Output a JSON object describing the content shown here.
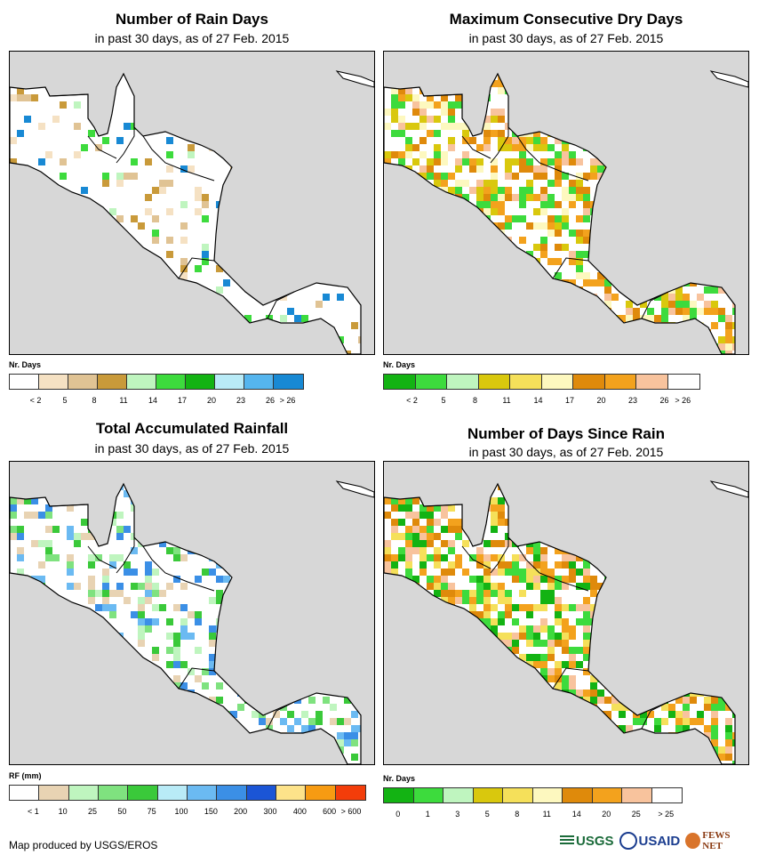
{
  "panels": {
    "rain_days": {
      "title": "Number of Rain Days",
      "subtitle": "in past 30 days, as of 27 Feb. 2015",
      "legend_title": "Nr. Days",
      "legend_colors": [
        "#ffffff",
        "#f5e1c3",
        "#e0c394",
        "#c99a3a",
        "#bff5bf",
        "#3ddb3d",
        "#13b313",
        "#b9ebf7",
        "#55b5ee",
        "#1889d4"
      ],
      "legend_ticks": [
        "< 2",
        "5",
        "8",
        "11",
        "14",
        "17",
        "20",
        "23",
        "26",
        "> 26"
      ]
    },
    "dry_days": {
      "title": "Maximum Consecutive Dry Days",
      "subtitle": "in past 30 days, as of 27 Feb. 2015",
      "legend_title": "Nr. Days",
      "legend_colors": [
        "#13b313",
        "#3ddb3d",
        "#bff5bf",
        "#d9c80d",
        "#f5e05a",
        "#fdf8bf",
        "#df8a0b",
        "#f3a21d",
        "#f8c39d",
        "#ffffff"
      ],
      "legend_ticks": [
        "< 2",
        "5",
        "8",
        "11",
        "14",
        "17",
        "20",
        "23",
        "26",
        "> 26"
      ]
    },
    "rainfall": {
      "title": "Total Accumulated Rainfall",
      "subtitle": "in past 30 days, as of 27 Feb. 2015",
      "legend_title": "RF (mm)",
      "legend_colors": [
        "#ffffff",
        "#e8d3b3",
        "#bff5bf",
        "#7fe27f",
        "#3ac93a",
        "#b9ebf7",
        "#6bbaf2",
        "#3b8fe6",
        "#1b55d6",
        "#fde38a",
        "#f79b12",
        "#f33d0a"
      ],
      "legend_ticks": [
        "< 1",
        "10",
        "25",
        "50",
        "75",
        "100",
        "150",
        "200",
        "300",
        "400",
        "600",
        "> 600"
      ]
    },
    "since_rain": {
      "title": "Number of Days Since Rain",
      "subtitle": "in past 30 days, as of 27 Feb. 2015",
      "legend_title": "Nr. Days",
      "legend_colors": [
        "#13b313",
        "#3ddb3d",
        "#bff5bf",
        "#d9c80d",
        "#f5e05a",
        "#fdf8bf",
        "#df8a0b",
        "#f3a21d",
        "#f8c39d",
        "#ffffff"
      ],
      "legend_ticks": [
        "0",
        "1",
        "3",
        "5",
        "8",
        "11",
        "14",
        "20",
        "25",
        "> 25"
      ]
    }
  },
  "footer": {
    "credit": "Map produced by USGS/EROS",
    "logo_usgs": "USGS",
    "logo_usaid": "USAID",
    "logo_fews": "FEWS NET"
  }
}
